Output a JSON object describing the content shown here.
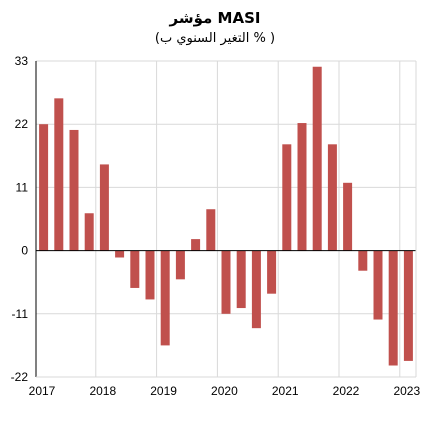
{
  "chart_data": {
    "type": "bar",
    "title": "مؤشر MASI",
    "subtitle": "(التغير السنوي ب % )",
    "xlabel": "",
    "ylabel": "",
    "ylim": [
      -22,
      33
    ],
    "y_ticks": [
      33,
      22,
      11,
      0,
      -11,
      -22
    ],
    "x_tick_labels": [
      "2017",
      "2018",
      "2019",
      "2020",
      "2021",
      "2022",
      "2023"
    ],
    "grid": true,
    "bar_color": "#c0504d",
    "series": [
      {
        "values": [
          22.0,
          26.5,
          21.0,
          6.5,
          15.0,
          -1.2,
          -6.5,
          -8.5,
          -16.5,
          -5.0,
          2.0,
          7.2,
          -11.0,
          -10.0,
          -13.5,
          -7.5,
          18.5,
          22.2,
          32.0,
          18.5,
          11.8,
          -3.5,
          -12.0,
          -20.0,
          -19.2
        ]
      }
    ]
  }
}
